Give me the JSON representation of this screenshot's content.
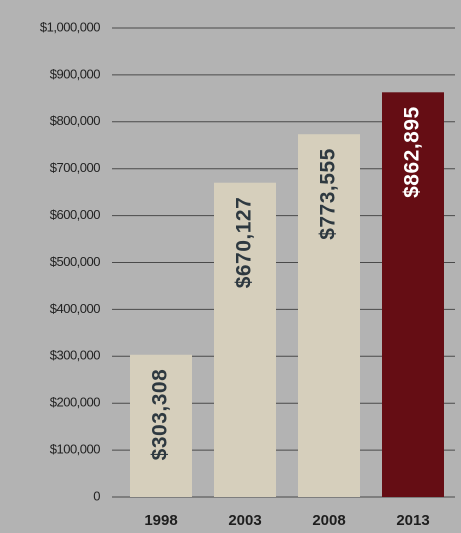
{
  "chart_data": {
    "type": "bar",
    "categories": [
      "1998",
      "2003",
      "2008",
      "2013"
    ],
    "values": [
      303308,
      670127,
      773555,
      862895
    ],
    "value_labels": [
      "$303,308",
      "$670,127",
      "$773,555",
      "$862,895"
    ],
    "colors": [
      "#d6cfbc",
      "#d6cfbc",
      "#d6cfbc",
      "#650d14"
    ],
    "ylim": [
      0,
      1000000
    ],
    "yticks": [
      0,
      {
        "value": 100000,
        "label": "$100,000"
      },
      {
        "value": 200000,
        "label": "$200,000"
      },
      {
        "value": 300000,
        "label": "$300,000"
      },
      {
        "value": 400000,
        "label": "$400,000"
      },
      {
        "value": 500000,
        "label": "$500,000"
      },
      {
        "value": 600000,
        "label": "$600,000"
      },
      {
        "value": 700000,
        "label": "$700,000"
      },
      {
        "value": 800000,
        "label": "$800,000"
      },
      {
        "value": 900000,
        "label": "$900,000"
      },
      {
        "value": 1000000,
        "label": "$1,000,000"
      }
    ],
    "grid": true
  }
}
